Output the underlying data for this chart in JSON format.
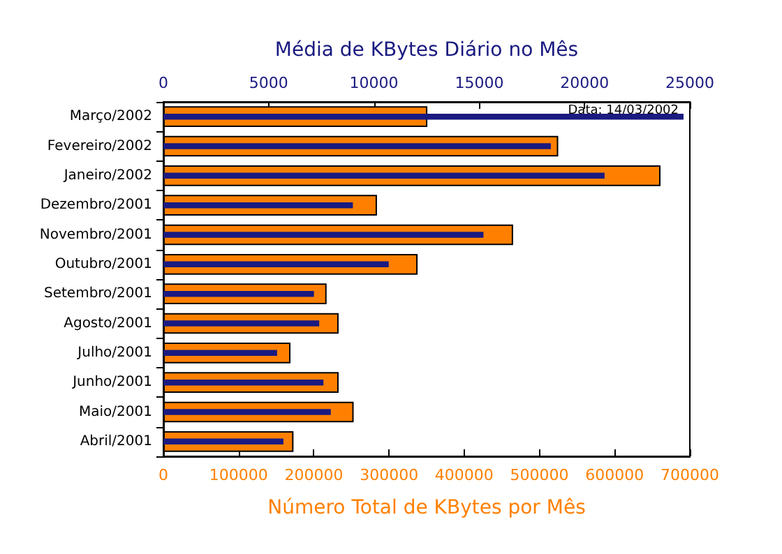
{
  "chart_data": {
    "type": "bar",
    "orientation": "horizontal",
    "xlabel": "Número Total de KBytes por Mês",
    "x2label": "Média de KBytes Diário no Mês",
    "annotations": [
      "Data: 14/03/2002"
    ],
    "categories": [
      "Março/2002",
      "Fevereiro/2002",
      "Janeiro/2002",
      "Dezembro/2001",
      "Novembro/2001",
      "Outubro/2001",
      "Setembro/2001",
      "Agosto/2001",
      "Julho/2001",
      "Junho/2001",
      "Maio/2001",
      "Abril/2001"
    ],
    "series": [
      {
        "color": "#ff8000",
        "values": [
          351000,
          525000,
          661000,
          284000,
          465000,
          338000,
          217000,
          233000,
          169000,
          233000,
          253000,
          173000
        ]
      },
      {
        "color": "#1a1a80",
        "axis": "x2",
        "values": [
          24700,
          18400,
          20950,
          9000,
          15200,
          10700,
          7150,
          7400,
          5400,
          7600,
          7950,
          5700
        ]
      }
    ],
    "xlim": [
      0,
      700000
    ],
    "xticks": [
      0,
      100000,
      200000,
      300000,
      400000,
      500000,
      600000,
      700000
    ],
    "x2lim": [
      0,
      25000
    ],
    "x2ticks": [
      0,
      5000,
      10000,
      15000,
      20000,
      25000
    ],
    "grid": false
  }
}
